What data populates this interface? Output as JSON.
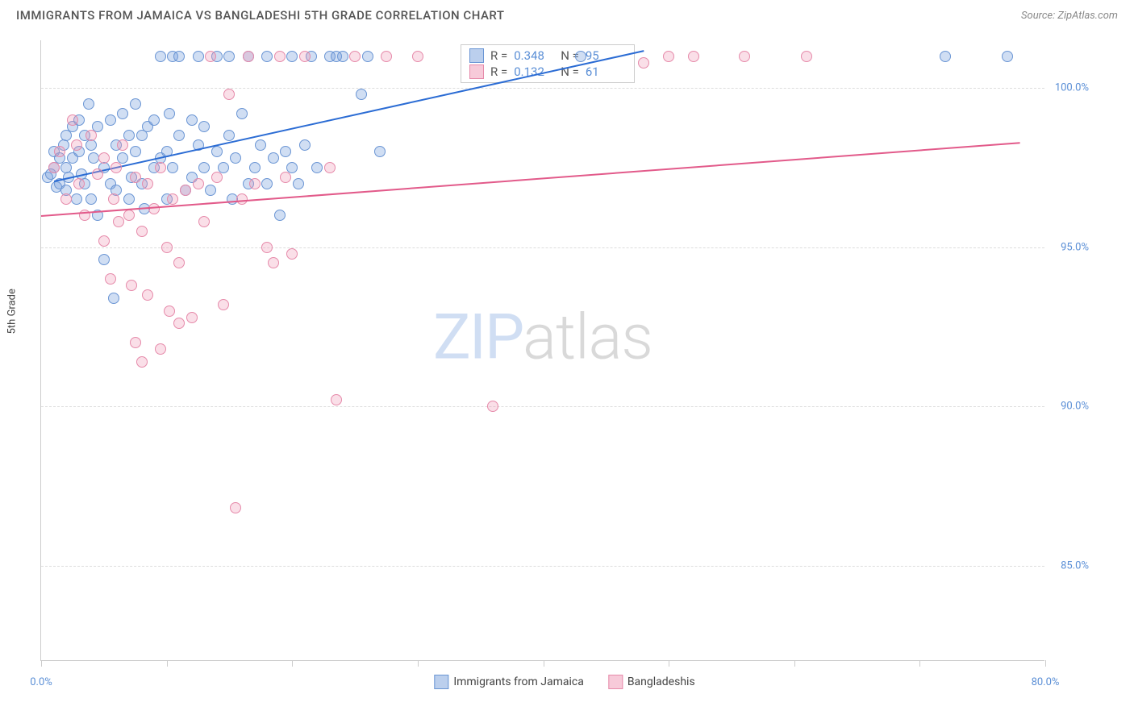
{
  "header": {
    "title": "IMMIGRANTS FROM JAMAICA VS BANGLADESHI 5TH GRADE CORRELATION CHART",
    "source": "Source: ZipAtlas.com"
  },
  "chart": {
    "type": "scatter",
    "y_axis_title": "5th Grade",
    "xlim": [
      0,
      80
    ],
    "ylim": [
      82,
      101.5
    ],
    "x_ticks": [
      0,
      10,
      20,
      30,
      40,
      50,
      60,
      70,
      80
    ],
    "x_tick_labels": {
      "0": "0.0%",
      "80": "80.0%"
    },
    "y_gridlines": [
      85,
      90,
      95,
      100
    ],
    "y_labels": {
      "85": "85.0%",
      "90": "90.0%",
      "95": "95.0%",
      "100": "100.0%"
    },
    "background_color": "#ffffff",
    "grid_color": "#dddddd",
    "series": [
      {
        "name": "Immigrants from Jamaica",
        "color_fill": "rgba(120,160,220,0.35)",
        "color_stroke": "#6a95d4",
        "trend_color": "#2b6cd4",
        "R": "0.348",
        "N": "95",
        "trend": {
          "x1": 1,
          "y1": 97.1,
          "x2": 48,
          "y2": 101.2
        },
        "points": [
          [
            0.5,
            97.2
          ],
          [
            0.8,
            97.3
          ],
          [
            1,
            98.0
          ],
          [
            1,
            97.5
          ],
          [
            1.2,
            96.9
          ],
          [
            1.5,
            97.8
          ],
          [
            1.5,
            97.0
          ],
          [
            1.8,
            98.2
          ],
          [
            2,
            96.8
          ],
          [
            2,
            97.5
          ],
          [
            2,
            98.5
          ],
          [
            2.2,
            97.2
          ],
          [
            2.5,
            98.8
          ],
          [
            2.5,
            97.8
          ],
          [
            2.8,
            96.5
          ],
          [
            3,
            98.0
          ],
          [
            3,
            99.0
          ],
          [
            3.2,
            97.3
          ],
          [
            3.5,
            97.0
          ],
          [
            3.5,
            98.5
          ],
          [
            3.8,
            99.5
          ],
          [
            4,
            96.5
          ],
          [
            4,
            98.2
          ],
          [
            4.2,
            97.8
          ],
          [
            4.5,
            96.0
          ],
          [
            4.5,
            98.8
          ],
          [
            5,
            97.5
          ],
          [
            5,
            94.6
          ],
          [
            5.5,
            99.0
          ],
          [
            5.5,
            97.0
          ],
          [
            5.8,
            93.4
          ],
          [
            6,
            98.2
          ],
          [
            6,
            96.8
          ],
          [
            6.5,
            97.8
          ],
          [
            6.5,
            99.2
          ],
          [
            7,
            98.5
          ],
          [
            7,
            96.5
          ],
          [
            7.2,
            97.2
          ],
          [
            7.5,
            98.0
          ],
          [
            7.5,
            99.5
          ],
          [
            8,
            97.0
          ],
          [
            8,
            98.5
          ],
          [
            8.2,
            96.2
          ],
          [
            8.5,
            98.8
          ],
          [
            9,
            99.0
          ],
          [
            9,
            97.5
          ],
          [
            9.5,
            101.0
          ],
          [
            9.5,
            97.8
          ],
          [
            10,
            96.5
          ],
          [
            10,
            98.0
          ],
          [
            10.2,
            99.2
          ],
          [
            10.5,
            101.0
          ],
          [
            10.5,
            97.5
          ],
          [
            11,
            98.5
          ],
          [
            11,
            101.0
          ],
          [
            11.5,
            96.8
          ],
          [
            12,
            99.0
          ],
          [
            12,
            97.2
          ],
          [
            12.5,
            98.2
          ],
          [
            12.5,
            101.0
          ],
          [
            13,
            97.5
          ],
          [
            13,
            98.8
          ],
          [
            13.5,
            96.8
          ],
          [
            14,
            101.0
          ],
          [
            14,
            98.0
          ],
          [
            14.5,
            97.5
          ],
          [
            15,
            101.0
          ],
          [
            15,
            98.5
          ],
          [
            15.2,
            96.5
          ],
          [
            15.5,
            97.8
          ],
          [
            16,
            99.2
          ],
          [
            16.5,
            97.0
          ],
          [
            16.5,
            101.0
          ],
          [
            17,
            97.5
          ],
          [
            17.5,
            98.2
          ],
          [
            18,
            101.0
          ],
          [
            18,
            97.0
          ],
          [
            18.5,
            97.8
          ],
          [
            19,
            96.0
          ],
          [
            19.5,
            98.0
          ],
          [
            20,
            101.0
          ],
          [
            20,
            97.5
          ],
          [
            20.5,
            97.0
          ],
          [
            21,
            98.2
          ],
          [
            21.5,
            101.0
          ],
          [
            22,
            97.5
          ],
          [
            23,
            101.0
          ],
          [
            24,
            101.0
          ],
          [
            25.5,
            99.8
          ],
          [
            26,
            101.0
          ],
          [
            27,
            98.0
          ],
          [
            43,
            101.0
          ],
          [
            72,
            101.0
          ],
          [
            77,
            101.0
          ],
          [
            23.5,
            101.0
          ]
        ]
      },
      {
        "name": "Bangladeshis",
        "color_fill": "rgba(240,150,180,0.3)",
        "color_stroke": "#e68aaa",
        "trend_color": "#e25a8a",
        "R": "0.132",
        "N": "61",
        "trend": {
          "x1": 0,
          "y1": 96.0,
          "x2": 78,
          "y2": 98.3
        },
        "points": [
          [
            1,
            97.5
          ],
          [
            1.5,
            98.0
          ],
          [
            2,
            96.5
          ],
          [
            2.5,
            99.0
          ],
          [
            2.8,
            98.2
          ],
          [
            3,
            97.0
          ],
          [
            3.5,
            96.0
          ],
          [
            4,
            98.5
          ],
          [
            4.5,
            97.3
          ],
          [
            5,
            97.8
          ],
          [
            5,
            95.2
          ],
          [
            5.5,
            94.0
          ],
          [
            5.8,
            96.5
          ],
          [
            6,
            97.5
          ],
          [
            6.2,
            95.8
          ],
          [
            6.5,
            98.2
          ],
          [
            7,
            96.0
          ],
          [
            7.2,
            93.8
          ],
          [
            7.5,
            97.2
          ],
          [
            7.5,
            92.0
          ],
          [
            8,
            95.5
          ],
          [
            8,
            91.4
          ],
          [
            8.5,
            97.0
          ],
          [
            8.5,
            93.5
          ],
          [
            9,
            96.2
          ],
          [
            9.5,
            91.8
          ],
          [
            9.5,
            97.5
          ],
          [
            10,
            95.0
          ],
          [
            10.2,
            93.0
          ],
          [
            10.5,
            96.5
          ],
          [
            11,
            92.6
          ],
          [
            11,
            94.5
          ],
          [
            11.5,
            96.8
          ],
          [
            12,
            92.8
          ],
          [
            12.5,
            97.0
          ],
          [
            13,
            95.8
          ],
          [
            13.5,
            101.0
          ],
          [
            14,
            97.2
          ],
          [
            14.5,
            93.2
          ],
          [
            15,
            99.8
          ],
          [
            15.5,
            86.8
          ],
          [
            16,
            96.5
          ],
          [
            16.5,
            101.0
          ],
          [
            17,
            97.0
          ],
          [
            18,
            95.0
          ],
          [
            18.5,
            94.5
          ],
          [
            19,
            101.0
          ],
          [
            19.5,
            97.2
          ],
          [
            20,
            94.8
          ],
          [
            21,
            101.0
          ],
          [
            23,
            97.5
          ],
          [
            23.5,
            90.2
          ],
          [
            25,
            101.0
          ],
          [
            27.5,
            101.0
          ],
          [
            30,
            101.0
          ],
          [
            36,
            90.0
          ],
          [
            48,
            100.8
          ],
          [
            50,
            101.0
          ],
          [
            52,
            101.0
          ],
          [
            56,
            101.0
          ],
          [
            61,
            101.0
          ]
        ]
      }
    ],
    "watermark": {
      "zip": "ZIP",
      "atlas": "atlas"
    }
  },
  "legend": {
    "series1": "Immigrants from Jamaica",
    "series2": "Bangladeshis"
  },
  "stats": {
    "r_label": "R =",
    "n_label": "N ="
  }
}
